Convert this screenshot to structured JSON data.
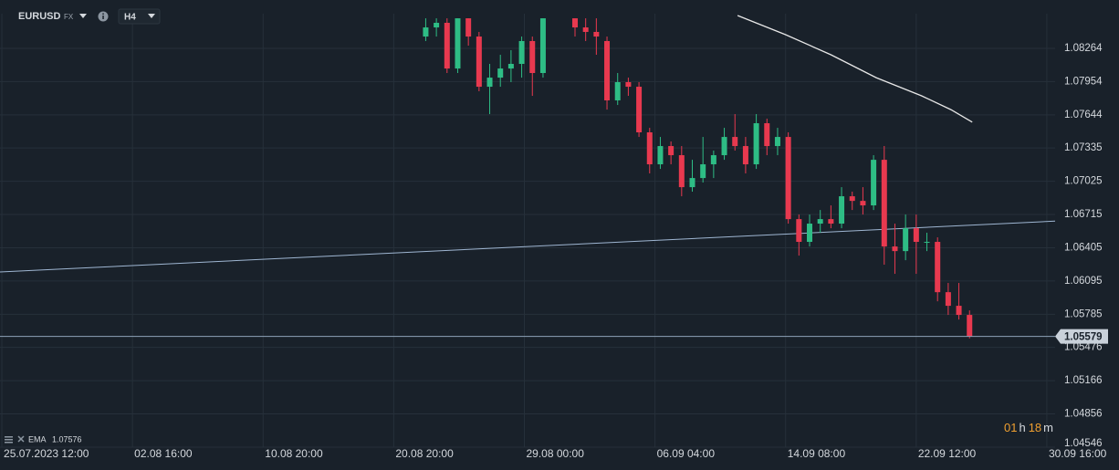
{
  "header": {
    "symbol": "EURUSD",
    "market": "FX",
    "timeframe": "H4"
  },
  "chart_data": {
    "type": "candlestick",
    "x": [
      159,
      163,
      167,
      171,
      175,
      179,
      183,
      187,
      191,
      195,
      199,
      203,
      215,
      219,
      223,
      227,
      231,
      235,
      239,
      243,
      247,
      251,
      255,
      259,
      263,
      267,
      271,
      275,
      279,
      283,
      287,
      291,
      295,
      299,
      303,
      307,
      311,
      315,
      319,
      323,
      327,
      331,
      335,
      339,
      343,
      347,
      351,
      355,
      359,
      363
    ],
    "open": [
      1.08374,
      1.08459,
      1.08502,
      1.08076,
      1.08544,
      1.08374,
      1.07906,
      1.07991,
      1.08076,
      1.08119,
      1.08332,
      1.08034,
      1.08544,
      1.08459,
      1.08417,
      1.08332,
      1.07779,
      1.07949,
      1.07906,
      1.07481,
      1.07183,
      1.07353,
      1.07268,
      1.0697,
      1.07055,
      1.07183,
      1.07268,
      1.07438,
      1.07353,
      1.07183,
      1.07566,
      1.07353,
      1.07438,
      1.06672,
      1.0646,
      1.0663,
      1.06672,
      1.0663,
      1.06885,
      1.06842,
      1.068,
      1.07225,
      1.06417,
      1.06374,
      1.06587,
      1.0646,
      1.0646,
      1.05991,
      1.05864,
      1.05779
    ],
    "high": [
      1.08544,
      1.08544,
      1.08544,
      1.08544,
      1.08544,
      1.08417,
      1.08119,
      1.08204,
      1.08247,
      1.08374,
      1.08374,
      1.08544,
      1.08544,
      1.08544,
      1.08544,
      1.08374,
      1.08034,
      1.07991,
      1.07949,
      1.07523,
      1.07438,
      1.07396,
      1.07353,
      1.07225,
      1.07438,
      1.07311,
      1.07523,
      1.07651,
      1.07438,
      1.07651,
      1.07608,
      1.07523,
      1.07481,
      1.06715,
      1.06715,
      1.06757,
      1.068,
      1.0697,
      1.06928,
      1.0697,
      1.07268,
      1.07353,
      1.0663,
      1.06715,
      1.06715,
      1.06545,
      1.06502,
      1.06077,
      1.06077,
      1.05821
    ],
    "low": [
      1.08332,
      1.08374,
      1.08034,
      1.08034,
      1.08289,
      1.07864,
      1.07651,
      1.07906,
      1.07949,
      1.07991,
      1.07821,
      1.07991,
      1.08374,
      1.08332,
      1.08204,
      1.07693,
      1.07736,
      1.07821,
      1.07438,
      1.07098,
      1.0714,
      1.07183,
      1.06885,
      1.06928,
      1.07013,
      1.07055,
      1.07225,
      1.07311,
      1.07098,
      1.0714,
      1.07268,
      1.07268,
      1.0663,
      1.06332,
      1.06417,
      1.06545,
      1.06587,
      1.06587,
      1.06757,
      1.06715,
      1.06757,
      1.06247,
      1.06162,
      1.06289,
      1.06162,
      1.06374,
      1.05906,
      1.05779,
      1.05736,
      1.0556
    ],
    "close": [
      1.08459,
      1.08502,
      1.08076,
      1.08544,
      1.08374,
      1.07906,
      1.07991,
      1.08076,
      1.08119,
      1.08332,
      1.08034,
      1.08544,
      1.08459,
      1.08417,
      1.08374,
      1.07779,
      1.07949,
      1.07906,
      1.07481,
      1.07183,
      1.07353,
      1.07268,
      1.0697,
      1.07055,
      1.07183,
      1.07268,
      1.07438,
      1.07353,
      1.07183,
      1.07566,
      1.07353,
      1.07438,
      1.06672,
      1.0646,
      1.0663,
      1.06672,
      1.0663,
      1.06885,
      1.06842,
      1.068,
      1.07225,
      1.06417,
      1.06374,
      1.06587,
      1.0646,
      1.0646,
      1.05991,
      1.05864,
      1.05779,
      1.05579
    ],
    "up_color": "#2ebd85",
    "down_color": "#e8394f",
    "xlim": [
      -0.7,
      395.1
    ],
    "ylim": [
      1.04546,
      1.08587
    ],
    "xticks": [
      {
        "value": 0,
        "label": "25.07.2023 12:00"
      },
      {
        "value": 49,
        "label": "02.08 16:00"
      },
      {
        "value": 98,
        "label": "10.08 20:00"
      },
      {
        "value": 147,
        "label": "20.08 20:00"
      },
      {
        "value": 196,
        "label": "29.08 00:00"
      },
      {
        "value": 245,
        "label": "06.09 04:00"
      },
      {
        "value": 294,
        "label": "14.09 08:00"
      },
      {
        "value": 343,
        "label": "22.09 12:00"
      },
      {
        "value": 392,
        "label": "30.09 16:00"
      }
    ],
    "yticks": [
      1.08264,
      1.07954,
      1.07644,
      1.07335,
      1.07025,
      1.06715,
      1.06405,
      1.06095,
      1.05785,
      1.05476,
      1.05166,
      1.04856,
      1.04546
    ],
    "grid": true,
    "ema": {
      "name": "EMA",
      "color": "#e8e8e8",
      "x": [
        276,
        294,
        311,
        328,
        345,
        356,
        364
      ],
      "values": [
        1.0857,
        1.08391,
        1.08204,
        1.07991,
        1.07821,
        1.07693,
        1.07576
      ]
    },
    "trendline": {
      "color": "#9fb6d2",
      "x": [
        -0.7,
        396.2
      ],
      "values": [
        1.06179,
        1.06655
      ]
    },
    "last_price": 1.05579
  },
  "timer": {
    "hours": "01",
    "h": "h",
    "minutes": "18",
    "m": "m"
  }
}
